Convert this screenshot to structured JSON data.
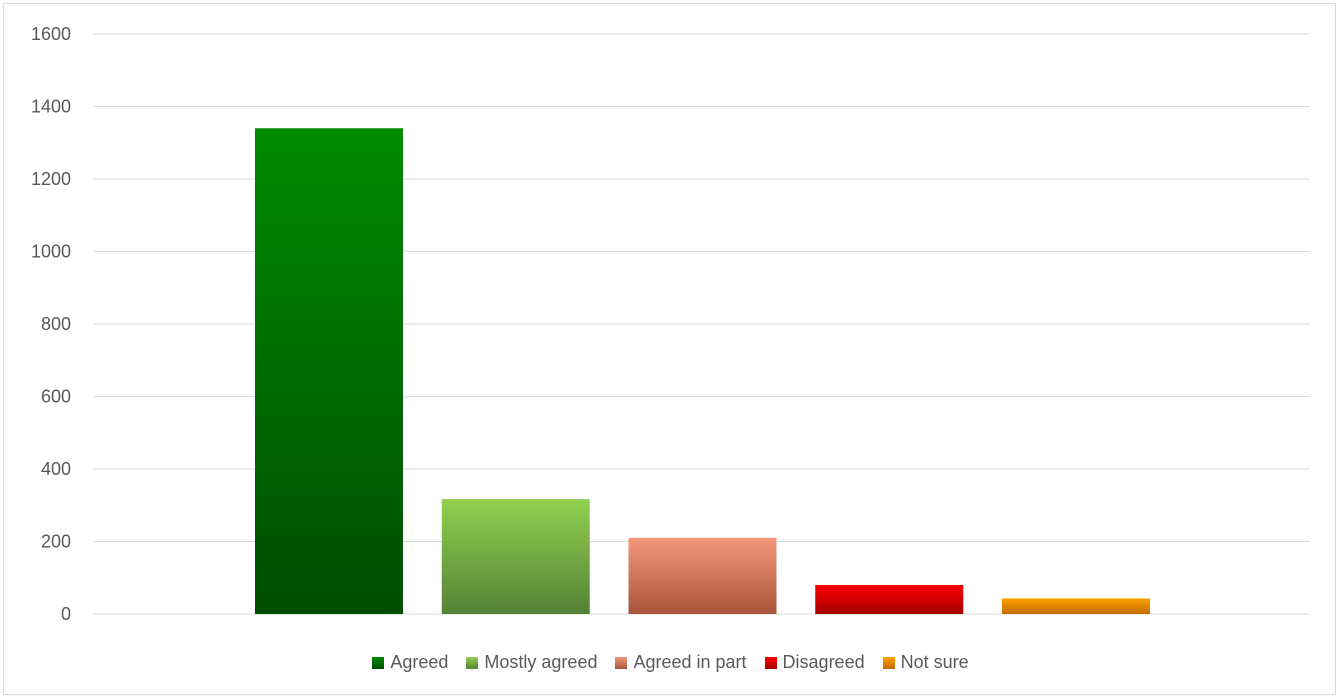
{
  "chart_data": {
    "type": "bar",
    "title": "",
    "xlabel": "",
    "ylabel": "",
    "ylim": [
      0,
      1600
    ],
    "yticks": [
      0,
      200,
      400,
      600,
      800,
      1000,
      1200,
      1400,
      1600
    ],
    "grid": true,
    "legend_position": "bottom",
    "categories": [
      "Agreed",
      "Mostly agreed",
      "Agreed in part",
      "Disagreed",
      "Not sure"
    ],
    "series": [
      {
        "name": "Agreed",
        "value": 1340,
        "color_top": "#008a00",
        "color_bottom": "#004d00"
      },
      {
        "name": "Mostly agreed",
        "value": 317,
        "color_top": "#92d050",
        "color_bottom": "#548235"
      },
      {
        "name": "Agreed in part",
        "value": 210,
        "color_top": "#f4977a",
        "color_bottom": "#a9553b"
      },
      {
        "name": "Disagreed",
        "value": 80,
        "color_top": "#ff0000",
        "color_bottom": "#a50000"
      },
      {
        "name": "Not sure",
        "value": 43,
        "color_top": "#ffa000",
        "color_bottom": "#c46b00"
      }
    ]
  }
}
